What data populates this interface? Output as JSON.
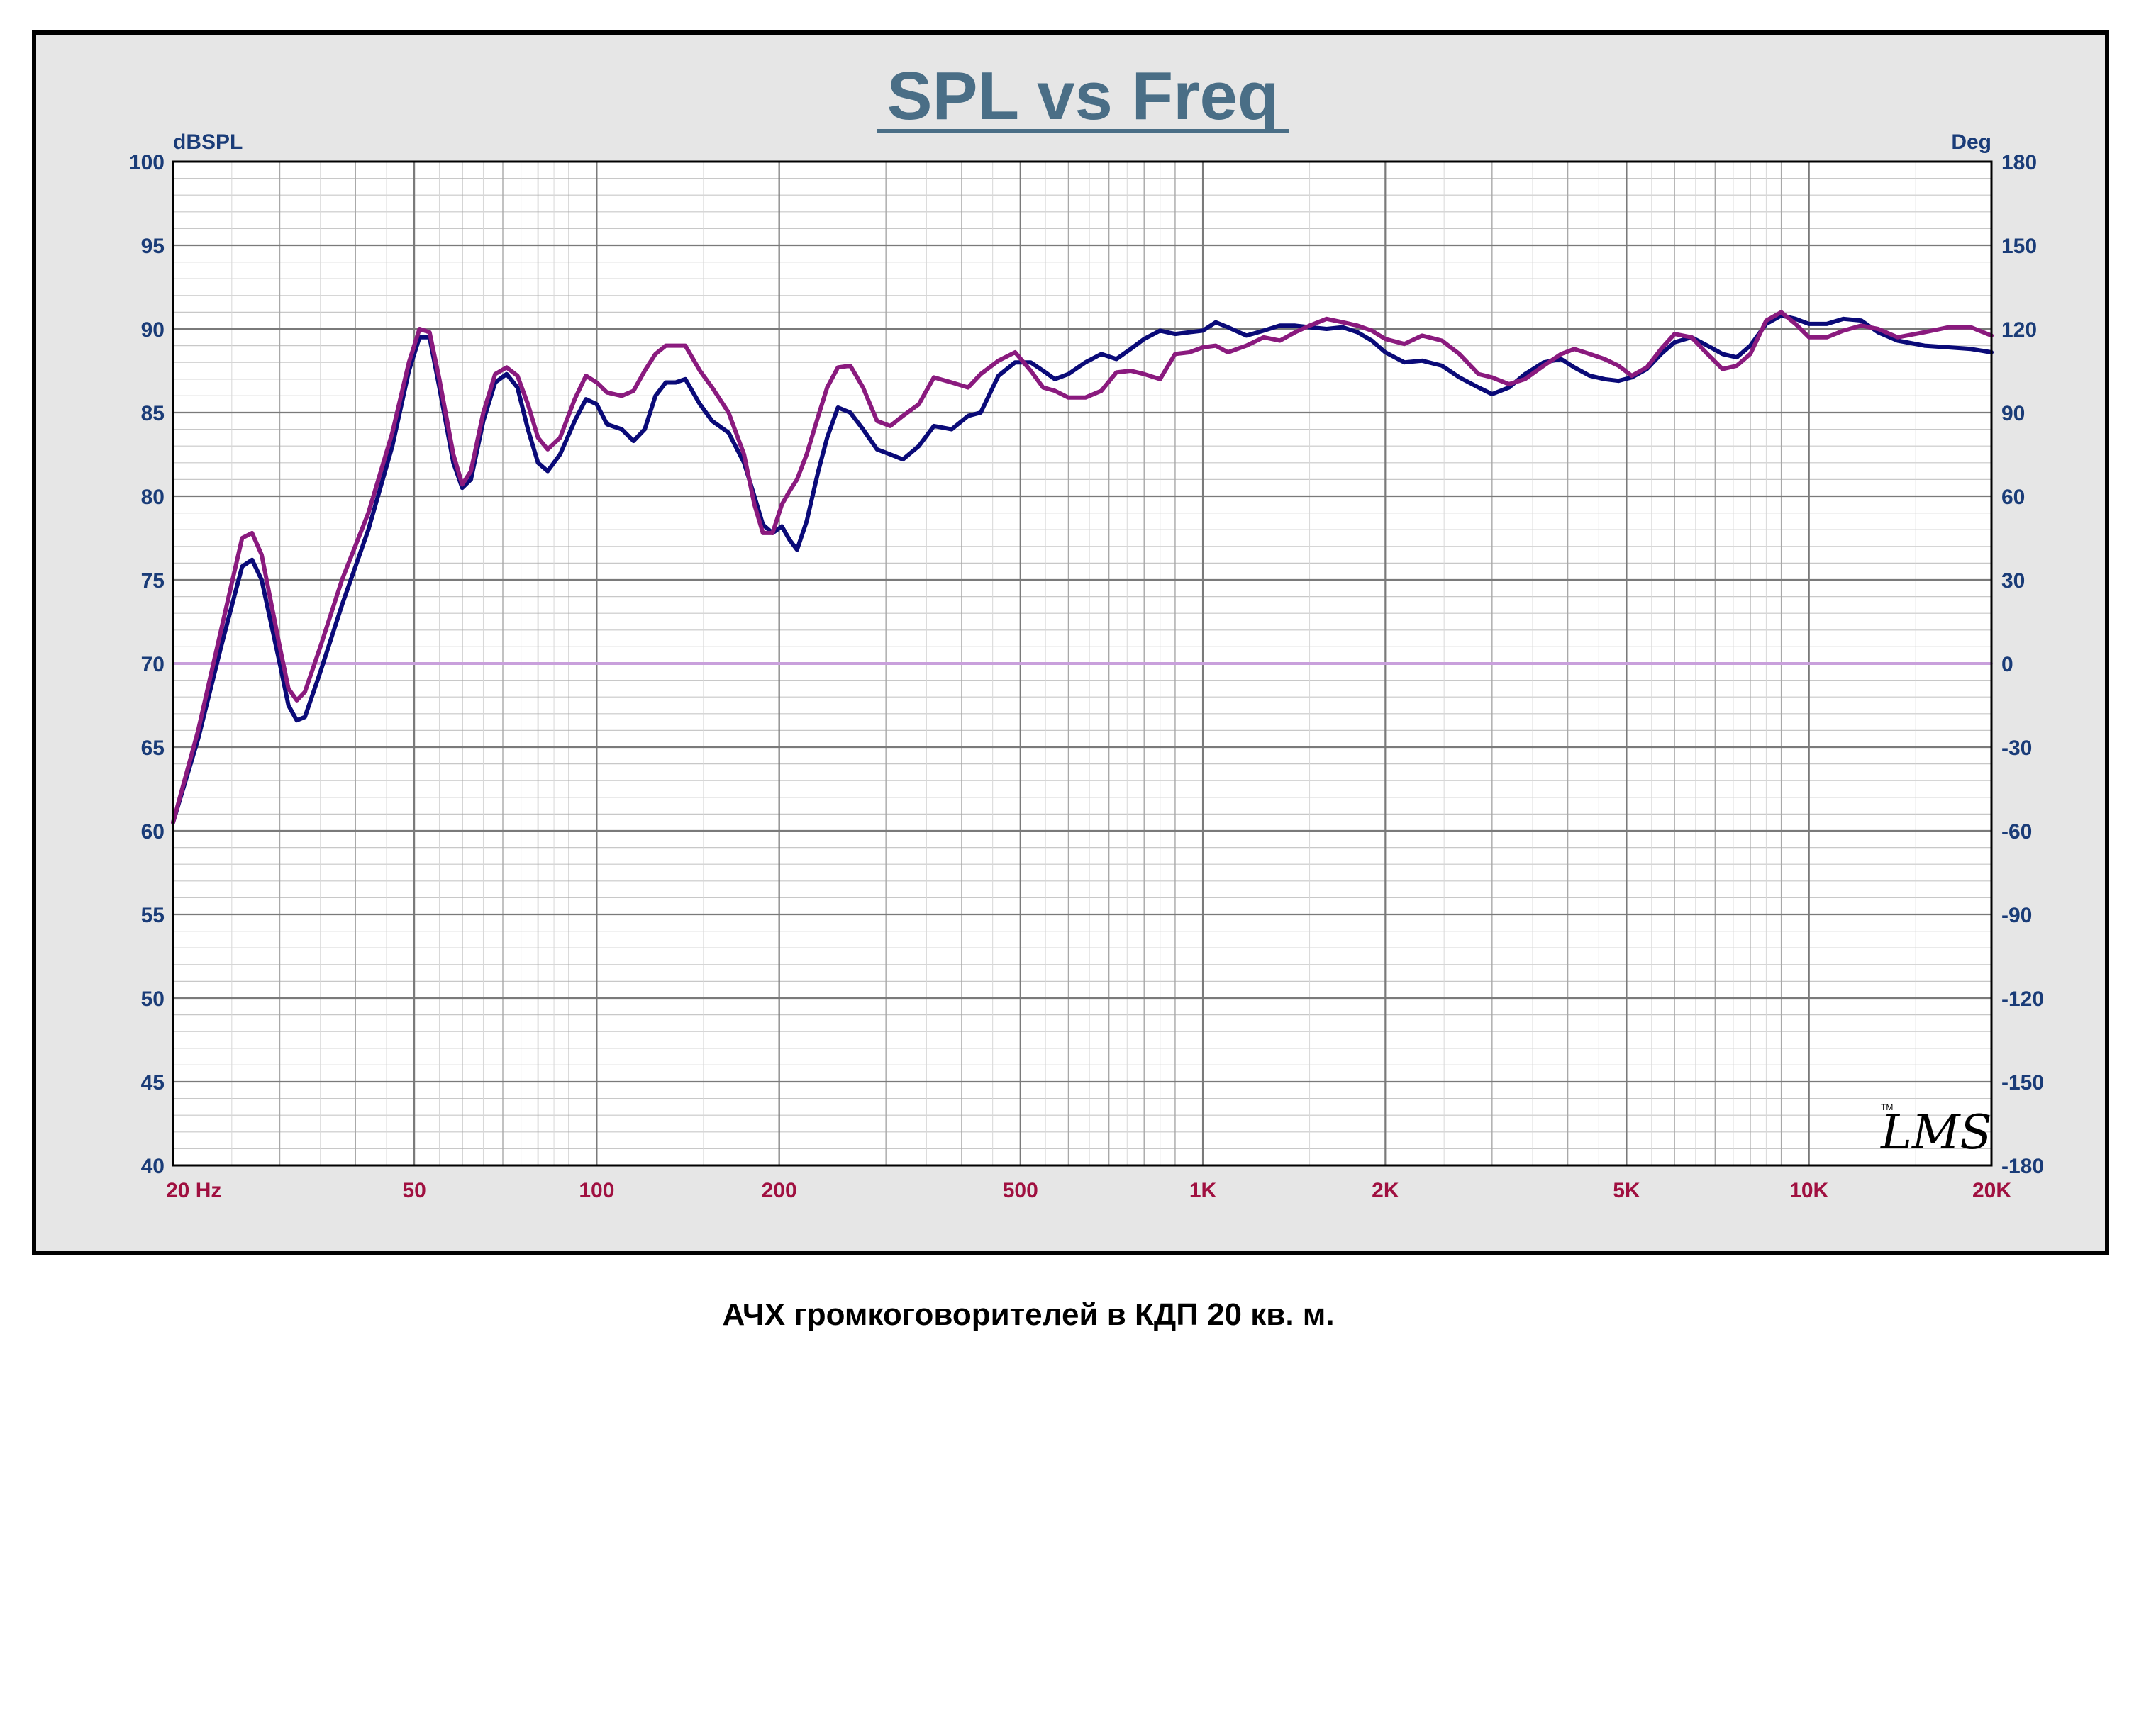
{
  "chart_data": {
    "type": "line",
    "title": "SPL vs Freq",
    "left_axis_unit": "dBSPL",
    "right_axis_unit": "Deg",
    "x_scale": "log",
    "xlim": [
      20,
      20000
    ],
    "ylim": [
      40,
      100
    ],
    "y2lim": [
      -180,
      180
    ],
    "grid": true,
    "y_ticks": [
      40,
      45,
      50,
      55,
      60,
      65,
      70,
      75,
      80,
      85,
      90,
      95,
      100
    ],
    "y_tick_labels": [
      "40",
      "45",
      "50",
      "55",
      "60",
      "65",
      "70",
      "75",
      "80",
      "85",
      "90",
      "95",
      "100"
    ],
    "y2_ticks": [
      -180,
      -150,
      -120,
      -90,
      -60,
      -30,
      0,
      30,
      60,
      90,
      120,
      150,
      180
    ],
    "y2_tick_labels": [
      "-180",
      "-150",
      "-120",
      "-90",
      "-60",
      "-30",
      "0",
      "30",
      "60",
      "90",
      "120",
      "150",
      "180"
    ],
    "x_ticks": [
      20,
      50,
      100,
      200,
      500,
      1000,
      2000,
      5000,
      10000,
      20000
    ],
    "x_tick_labels": [
      "20  Hz",
      "50",
      "100",
      "200",
      "500",
      "1K",
      "2K",
      "5K",
      "10K",
      "20K"
    ],
    "series": [
      {
        "color": "#0a0a78",
        "axis": "left",
        "points": [
          [
            20,
            60.5
          ],
          [
            22,
            65.5
          ],
          [
            24,
            71
          ],
          [
            26,
            75.8
          ],
          [
            27,
            76.2
          ],
          [
            28,
            75
          ],
          [
            30,
            70
          ],
          [
            31,
            67.5
          ],
          [
            32,
            66.6
          ],
          [
            33,
            66.8
          ],
          [
            35,
            69.5
          ],
          [
            38,
            73.5
          ],
          [
            42,
            78
          ],
          [
            46,
            83
          ],
          [
            49,
            87.5
          ],
          [
            51,
            89.5
          ],
          [
            53,
            89.5
          ],
          [
            55,
            86.5
          ],
          [
            58,
            82
          ],
          [
            60,
            80.5
          ],
          [
            62,
            81
          ],
          [
            65,
            84.5
          ],
          [
            68,
            86.8
          ],
          [
            71,
            87.3
          ],
          [
            74,
            86.5
          ],
          [
            77,
            84
          ],
          [
            80,
            82
          ],
          [
            83,
            81.5
          ],
          [
            87,
            82.5
          ],
          [
            92,
            84.5
          ],
          [
            96,
            85.8
          ],
          [
            100,
            85.5
          ],
          [
            104,
            84.3
          ],
          [
            110,
            84
          ],
          [
            115,
            83.3
          ],
          [
            120,
            84
          ],
          [
            125,
            86
          ],
          [
            130,
            86.8
          ],
          [
            135,
            86.8
          ],
          [
            140,
            87
          ],
          [
            148,
            85.5
          ],
          [
            155,
            84.5
          ],
          [
            165,
            83.8
          ],
          [
            175,
            82
          ],
          [
            182,
            80
          ],
          [
            188,
            78.3
          ],
          [
            195,
            77.8
          ],
          [
            202,
            78.2
          ],
          [
            208,
            77.4
          ],
          [
            214,
            76.8
          ],
          [
            222,
            78.5
          ],
          [
            232,
            81.5
          ],
          [
            240,
            83.5
          ],
          [
            250,
            85.3
          ],
          [
            262,
            85
          ],
          [
            275,
            84
          ],
          [
            290,
            82.8
          ],
          [
            305,
            82.5
          ],
          [
            320,
            82.2
          ],
          [
            340,
            83
          ],
          [
            360,
            84.2
          ],
          [
            385,
            84
          ],
          [
            410,
            84.8
          ],
          [
            430,
            85
          ],
          [
            460,
            87.2
          ],
          [
            490,
            88
          ],
          [
            520,
            88
          ],
          [
            545,
            87.5
          ],
          [
            570,
            87
          ],
          [
            600,
            87.3
          ],
          [
            640,
            88
          ],
          [
            680,
            88.5
          ],
          [
            720,
            88.2
          ],
          [
            760,
            88.8
          ],
          [
            800,
            89.4
          ],
          [
            850,
            89.9
          ],
          [
            900,
            89.7
          ],
          [
            950,
            89.8
          ],
          [
            1000,
            89.9
          ],
          [
            1050,
            90.4
          ],
          [
            1100,
            90.1
          ],
          [
            1180,
            89.6
          ],
          [
            1260,
            89.9
          ],
          [
            1340,
            90.2
          ],
          [
            1420,
            90.2
          ],
          [
            1500,
            90.1
          ],
          [
            1600,
            90
          ],
          [
            1700,
            90.1
          ],
          [
            1800,
            89.8
          ],
          [
            1900,
            89.3
          ],
          [
            2000,
            88.6
          ],
          [
            2150,
            88
          ],
          [
            2300,
            88.1
          ],
          [
            2480,
            87.8
          ],
          [
            2650,
            87.1
          ],
          [
            2850,
            86.5
          ],
          [
            3000,
            86.1
          ],
          [
            3200,
            86.5
          ],
          [
            3400,
            87.3
          ],
          [
            3650,
            88
          ],
          [
            3900,
            88.2
          ],
          [
            4100,
            87.7
          ],
          [
            4350,
            87.2
          ],
          [
            4600,
            87
          ],
          [
            4850,
            86.9
          ],
          [
            5100,
            87.1
          ],
          [
            5400,
            87.6
          ],
          [
            5700,
            88.5
          ],
          [
            6000,
            89.2
          ],
          [
            6400,
            89.5
          ],
          [
            6800,
            89
          ],
          [
            7200,
            88.5
          ],
          [
            7600,
            88.3
          ],
          [
            8000,
            89
          ],
          [
            8500,
            90.3
          ],
          [
            9000,
            90.8
          ],
          [
            9500,
            90.6
          ],
          [
            10000,
            90.3
          ],
          [
            10700,
            90.3
          ],
          [
            11400,
            90.6
          ],
          [
            12200,
            90.5
          ],
          [
            13000,
            89.8
          ],
          [
            14000,
            89.3
          ],
          [
            15500,
            89
          ],
          [
            17000,
            88.9
          ],
          [
            18500,
            88.8
          ],
          [
            20000,
            88.6
          ]
        ]
      },
      {
        "color": "#8a1a7e",
        "axis": "left",
        "points": [
          [
            20,
            60.5
          ],
          [
            22,
            66
          ],
          [
            24,
            72
          ],
          [
            26,
            77.5
          ],
          [
            27,
            77.8
          ],
          [
            28,
            76.5
          ],
          [
            30,
            71
          ],
          [
            31,
            68.5
          ],
          [
            32,
            67.8
          ],
          [
            33,
            68.3
          ],
          [
            35,
            71
          ],
          [
            38,
            75
          ],
          [
            42,
            79
          ],
          [
            46,
            83.8
          ],
          [
            49,
            88
          ],
          [
            51,
            90
          ],
          [
            53,
            89.8
          ],
          [
            55,
            87
          ],
          [
            58,
            82.5
          ],
          [
            60,
            80.7
          ],
          [
            62,
            81.5
          ],
          [
            65,
            85
          ],
          [
            68,
            87.3
          ],
          [
            71,
            87.7
          ],
          [
            74,
            87.2
          ],
          [
            77,
            85.5
          ],
          [
            80,
            83.5
          ],
          [
            83,
            82.8
          ],
          [
            87,
            83.5
          ],
          [
            92,
            85.8
          ],
          [
            96,
            87.2
          ],
          [
            100,
            86.8
          ],
          [
            104,
            86.2
          ],
          [
            110,
            86
          ],
          [
            115,
            86.3
          ],
          [
            120,
            87.5
          ],
          [
            125,
            88.5
          ],
          [
            130,
            89
          ],
          [
            135,
            89
          ],
          [
            140,
            89
          ],
          [
            148,
            87.5
          ],
          [
            155,
            86.5
          ],
          [
            165,
            85
          ],
          [
            175,
            82.5
          ],
          [
            182,
            79.5
          ],
          [
            188,
            77.8
          ],
          [
            195,
            77.8
          ],
          [
            202,
            79.5
          ],
          [
            208,
            80.3
          ],
          [
            214,
            81
          ],
          [
            222,
            82.5
          ],
          [
            232,
            84.8
          ],
          [
            240,
            86.5
          ],
          [
            250,
            87.7
          ],
          [
            262,
            87.8
          ],
          [
            275,
            86.5
          ],
          [
            290,
            84.5
          ],
          [
            305,
            84.2
          ],
          [
            320,
            84.8
          ],
          [
            340,
            85.5
          ],
          [
            360,
            87.1
          ],
          [
            385,
            86.8
          ],
          [
            410,
            86.5
          ],
          [
            430,
            87.3
          ],
          [
            460,
            88.1
          ],
          [
            490,
            88.6
          ],
          [
            520,
            87.5
          ],
          [
            545,
            86.5
          ],
          [
            570,
            86.3
          ],
          [
            600,
            85.9
          ],
          [
            640,
            85.9
          ],
          [
            680,
            86.3
          ],
          [
            720,
            87.4
          ],
          [
            760,
            87.5
          ],
          [
            800,
            87.3
          ],
          [
            850,
            87
          ],
          [
            900,
            88.5
          ],
          [
            950,
            88.6
          ],
          [
            1000,
            88.9
          ],
          [
            1050,
            89
          ],
          [
            1100,
            88.6
          ],
          [
            1180,
            89
          ],
          [
            1260,
            89.5
          ],
          [
            1340,
            89.3
          ],
          [
            1420,
            89.8
          ],
          [
            1500,
            90.2
          ],
          [
            1600,
            90.6
          ],
          [
            1700,
            90.4
          ],
          [
            1800,
            90.2
          ],
          [
            1900,
            89.9
          ],
          [
            2000,
            89.4
          ],
          [
            2150,
            89.1
          ],
          [
            2300,
            89.6
          ],
          [
            2480,
            89.3
          ],
          [
            2650,
            88.5
          ],
          [
            2850,
            87.3
          ],
          [
            3000,
            87.1
          ],
          [
            3200,
            86.7
          ],
          [
            3400,
            87
          ],
          [
            3650,
            87.8
          ],
          [
            3900,
            88.5
          ],
          [
            4100,
            88.8
          ],
          [
            4350,
            88.5
          ],
          [
            4600,
            88.2
          ],
          [
            4850,
            87.8
          ],
          [
            5100,
            87.2
          ],
          [
            5400,
            87.7
          ],
          [
            5700,
            88.8
          ],
          [
            6000,
            89.7
          ],
          [
            6400,
            89.5
          ],
          [
            6800,
            88.5
          ],
          [
            7200,
            87.6
          ],
          [
            7600,
            87.8
          ],
          [
            8000,
            88.5
          ],
          [
            8500,
            90.5
          ],
          [
            9000,
            91
          ],
          [
            9500,
            90.3
          ],
          [
            10000,
            89.5
          ],
          [
            10700,
            89.5
          ],
          [
            11400,
            89.9
          ],
          [
            12200,
            90.2
          ],
          [
            13000,
            90
          ],
          [
            14000,
            89.5
          ],
          [
            15500,
            89.8
          ],
          [
            17000,
            90.1
          ],
          [
            18500,
            90.1
          ],
          [
            20000,
            89.6
          ]
        ]
      },
      {
        "color": "#c9a0dc",
        "axis": "right",
        "points": [
          [
            20,
            0
          ],
          [
            20000,
            0
          ]
        ]
      }
    ],
    "annotation": "LMS",
    "annotation_tm": "TM"
  },
  "caption": "АЧХ громкоговорителей в КДП  20 кв. м."
}
